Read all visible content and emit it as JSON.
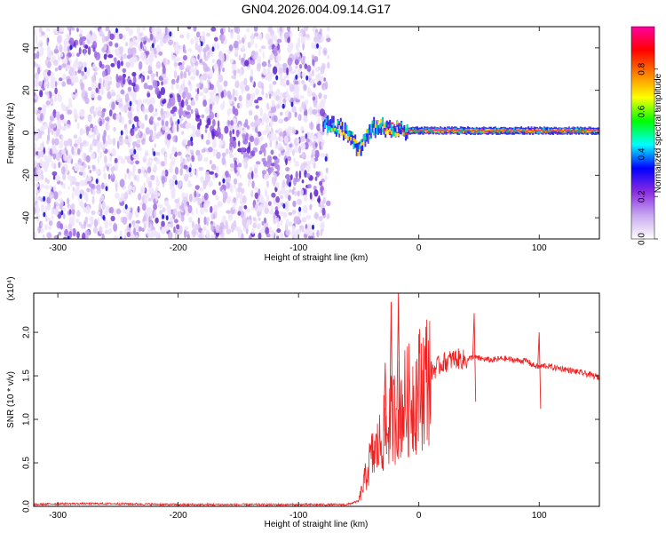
{
  "figure": {
    "title": "GN04.2026.004.09.14.G17"
  },
  "chart_data": [
    {
      "type": "heatmap",
      "title": "GN04.2026.004.09.14.G17",
      "xlabel": "Height of straight line (km)",
      "ylabel": "Frequency (Hz)",
      "xlim": [
        -320,
        150
      ],
      "ylim": [
        -50,
        50
      ],
      "xticks": [
        -300,
        -200,
        -100,
        0,
        100
      ],
      "yticks": [
        -40,
        -20,
        0,
        20,
        40
      ],
      "noise_region_x": [
        -320,
        -75
      ],
      "signal_line_frequency_hz": 1,
      "signal_description_points": [
        {
          "x": -80,
          "y": 5
        },
        {
          "x": -70,
          "y": 3
        },
        {
          "x": -60,
          "y": 0
        },
        {
          "x": -50,
          "y": -8
        },
        {
          "x": -40,
          "y": 2
        },
        {
          "x": -30,
          "y": 3
        },
        {
          "x": -20,
          "y": 2
        },
        {
          "x": -10,
          "y": 1
        },
        {
          "x": 0,
          "y": 1
        },
        {
          "x": 50,
          "y": 1
        },
        {
          "x": 80,
          "y": 1
        },
        {
          "x": 95,
          "y": 1
        },
        {
          "x": 150,
          "y": 1
        }
      ],
      "diagonal_trend": {
        "x": [
          -280,
          -90
        ],
        "y": [
          40,
          -25
        ]
      },
      "colorbar": {
        "label": "Normalized spectral amplitude",
        "range": [
          0,
          1
        ],
        "ticks": [
          "0.0",
          "0.2",
          "0.4",
          "0.6",
          "0.8"
        ],
        "colors": [
          "#ffffff",
          "#c8a8f0",
          "#8a2be2",
          "#0000ff",
          "#00ffff",
          "#00ff00",
          "#ffff00",
          "#ff8000",
          "#ff0000",
          "#ff00a0"
        ]
      }
    },
    {
      "type": "line",
      "xlabel": "Height of straight line (km)",
      "ylabel": "SNR (10 * v/v)",
      "multiplier_label": "(x10⁴)",
      "xlim": [
        -320,
        150
      ],
      "ylim": [
        0,
        2.45
      ],
      "xticks": [
        -300,
        -200,
        -100,
        0,
        100
      ],
      "yticks": [
        "0.0",
        "0.5",
        "1.0",
        "1.5",
        "2.0"
      ],
      "color": "#ee2222",
      "series": [
        {
          "x": [
            -320,
            -300,
            -250,
            -200,
            -150,
            -100,
            -60,
            -50,
            -45,
            -40,
            -35,
            -30,
            -25,
            -20,
            -15,
            -10,
            -5,
            0,
            5,
            10,
            20,
            30,
            40,
            45,
            50,
            60,
            70,
            80,
            90,
            95,
            100,
            105,
            110,
            120,
            130,
            140,
            150
          ],
          "y": [
            0.02,
            0.03,
            0.03,
            0.02,
            0.02,
            0.02,
            0.02,
            0.06,
            0.3,
            0.55,
            0.65,
            0.8,
            0.95,
            1.05,
            1.15,
            1.2,
            1.25,
            1.35,
            1.45,
            1.55,
            1.65,
            1.7,
            1.68,
            1.72,
            1.7,
            1.68,
            1.7,
            1.68,
            1.67,
            1.62,
            1.6,
            1.62,
            1.6,
            1.58,
            1.55,
            1.52,
            1.48
          ]
        }
      ],
      "spikes": [
        {
          "x": -28,
          "y": 1.65
        },
        {
          "x": -23,
          "y": 2.35
        },
        {
          "x": -17,
          "y": 2.45
        },
        {
          "x": 46,
          "y": 2.22
        },
        {
          "x": 100,
          "y": 2.0
        }
      ]
    }
  ]
}
